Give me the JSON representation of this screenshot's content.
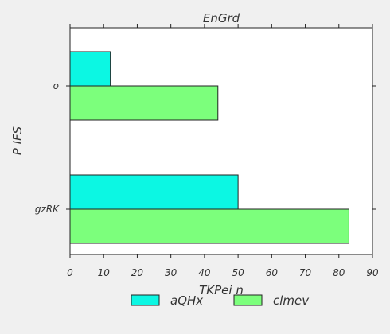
{
  "chart_data": {
    "type": "bar",
    "orientation": "horizontal",
    "title": "EnGrd",
    "xlabel": "TKPei n",
    "ylabel": "P IFS",
    "categories": [
      "o",
      "gzRK"
    ],
    "series": [
      {
        "name": "aQHx",
        "values": [
          12,
          50
        ],
        "color": "#0cf7e3"
      },
      {
        "name": "clmev",
        "values": [
          44,
          83
        ],
        "color": "#7cff7c"
      }
    ],
    "xlim": [
      0,
      90
    ],
    "xticks": [
      0,
      10,
      20,
      30,
      40,
      50,
      60,
      70,
      80,
      90
    ],
    "grid": false,
    "legend_position": "bottom"
  }
}
